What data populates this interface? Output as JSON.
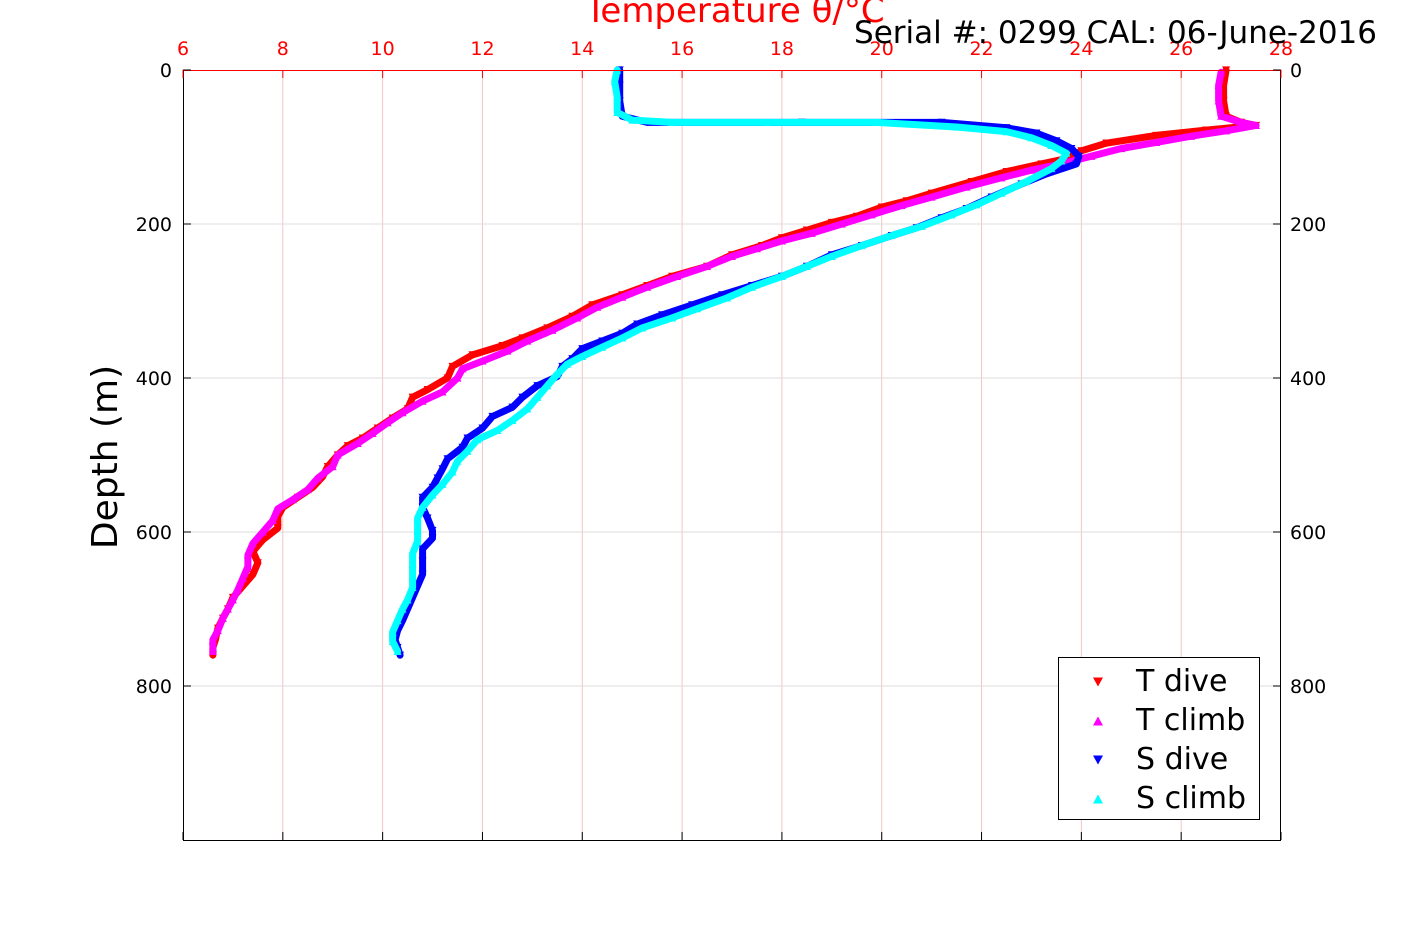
{
  "serial_text": "Serial #: 0299 CAL: 06-June-2016",
  "chart_data": {
    "type": "scatter",
    "title": "Temperature θ/°C",
    "xlabel": "Temperature θ/°C",
    "ylabel": "Depth (m)",
    "xlim": [
      6,
      28
    ],
    "ylim": [
      1000,
      0
    ],
    "x_ticks": [
      6,
      8,
      10,
      12,
      14,
      16,
      18,
      20,
      22,
      24,
      26,
      28
    ],
    "x_tick_labels": [
      "6",
      "8",
      "10",
      "12",
      "14",
      "16",
      "18",
      "20",
      "22",
      "24",
      "26",
      "28"
    ],
    "y_ticks": [
      0,
      200,
      400,
      600,
      800
    ],
    "y_tick_labels": [
      "0",
      "200",
      "400",
      "600",
      "800"
    ],
    "grid": true,
    "legend_position": "bottom-right",
    "colors": {
      "axis_top": "#ff0000",
      "grid_red": "#f2c6c6",
      "grid_gray": "#dcdcdc"
    },
    "series": [
      {
        "name": "T dive",
        "color": "#ff0000",
        "marker": "triangle-down",
        "points": [
          [
            26.9,
            0
          ],
          [
            26.85,
            20
          ],
          [
            26.85,
            40
          ],
          [
            26.9,
            60
          ],
          [
            27.2,
            68
          ],
          [
            27.5,
            72
          ],
          [
            26.5,
            78
          ],
          [
            25.5,
            85
          ],
          [
            24.5,
            95
          ],
          [
            24.0,
            105
          ],
          [
            23.7,
            115
          ],
          [
            23.2,
            122
          ],
          [
            22.5,
            132
          ],
          [
            21.8,
            145
          ],
          [
            21.0,
            160
          ],
          [
            20.5,
            170
          ],
          [
            20.0,
            178
          ],
          [
            19.5,
            190
          ],
          [
            19.0,
            198
          ],
          [
            18.5,
            208
          ],
          [
            18.0,
            218
          ],
          [
            17.6,
            228
          ],
          [
            17.0,
            240
          ],
          [
            16.5,
            255
          ],
          [
            15.8,
            268
          ],
          [
            15.3,
            280
          ],
          [
            14.8,
            292
          ],
          [
            14.2,
            305
          ],
          [
            13.8,
            320
          ],
          [
            13.3,
            335
          ],
          [
            12.8,
            348
          ],
          [
            12.4,
            358
          ],
          [
            11.8,
            370
          ],
          [
            11.4,
            385
          ],
          [
            11.3,
            400
          ],
          [
            10.9,
            415
          ],
          [
            10.6,
            425
          ],
          [
            10.5,
            440
          ],
          [
            10.2,
            452
          ],
          [
            9.9,
            465
          ],
          [
            9.6,
            478
          ],
          [
            9.3,
            488
          ],
          [
            9.1,
            500
          ],
          [
            8.9,
            515
          ],
          [
            8.8,
            528
          ],
          [
            8.6,
            542
          ],
          [
            8.3,
            555
          ],
          [
            8.0,
            568
          ],
          [
            7.9,
            580
          ],
          [
            7.9,
            595
          ],
          [
            7.6,
            610
          ],
          [
            7.4,
            625
          ],
          [
            7.5,
            640
          ],
          [
            7.4,
            655
          ],
          [
            7.2,
            670
          ],
          [
            7.0,
            685
          ],
          [
            6.9,
            700
          ],
          [
            6.8,
            712
          ],
          [
            6.7,
            725
          ],
          [
            6.65,
            740
          ],
          [
            6.6,
            750
          ],
          [
            6.6,
            760
          ]
        ]
      },
      {
        "name": "T climb",
        "color": "#ff00ff",
        "marker": "triangle-up",
        "points": [
          [
            6.6,
            755
          ],
          [
            6.6,
            740
          ],
          [
            6.7,
            728
          ],
          [
            6.8,
            712
          ],
          [
            6.9,
            700
          ],
          [
            7.0,
            688
          ],
          [
            7.1,
            675
          ],
          [
            7.2,
            660
          ],
          [
            7.3,
            645
          ],
          [
            7.3,
            630
          ],
          [
            7.4,
            615
          ],
          [
            7.6,
            600
          ],
          [
            7.8,
            585
          ],
          [
            7.9,
            570
          ],
          [
            8.2,
            558
          ],
          [
            8.5,
            545
          ],
          [
            8.7,
            530
          ],
          [
            9.0,
            515
          ],
          [
            9.1,
            500
          ],
          [
            9.5,
            485
          ],
          [
            9.8,
            472
          ],
          [
            10.1,
            458
          ],
          [
            10.4,
            445
          ],
          [
            10.8,
            430
          ],
          [
            11.2,
            418
          ],
          [
            11.5,
            400
          ],
          [
            11.6,
            388
          ],
          [
            12.0,
            378
          ],
          [
            12.5,
            365
          ],
          [
            12.9,
            352
          ],
          [
            13.4,
            338
          ],
          [
            13.9,
            322
          ],
          [
            14.3,
            308
          ],
          [
            14.8,
            295
          ],
          [
            15.3,
            282
          ],
          [
            15.9,
            268
          ],
          [
            16.5,
            255
          ],
          [
            17.0,
            242
          ],
          [
            17.5,
            232
          ],
          [
            18.0,
            222
          ],
          [
            18.6,
            212
          ],
          [
            19.2,
            200
          ],
          [
            19.8,
            188
          ],
          [
            20.4,
            176
          ],
          [
            21.0,
            165
          ],
          [
            21.7,
            152
          ],
          [
            22.4,
            140
          ],
          [
            23.0,
            130
          ],
          [
            23.6,
            122
          ],
          [
            24.2,
            112
          ],
          [
            24.8,
            102
          ],
          [
            25.5,
            94
          ],
          [
            26.2,
            86
          ],
          [
            26.9,
            79
          ],
          [
            27.5,
            72
          ],
          [
            27.2,
            68
          ],
          [
            26.8,
            60
          ],
          [
            26.75,
            40
          ],
          [
            26.75,
            20
          ],
          [
            26.8,
            3
          ]
        ]
      },
      {
        "name": "S dive",
        "color": "#0000ff",
        "marker": "triangle-down",
        "points": [
          [
            14.75,
            0
          ],
          [
            14.75,
            20
          ],
          [
            14.75,
            40
          ],
          [
            14.8,
            60
          ],
          [
            15.3,
            68
          ],
          [
            18.4,
            68
          ],
          [
            21.2,
            68
          ],
          [
            22.5,
            75
          ],
          [
            23.1,
            82
          ],
          [
            23.5,
            92
          ],
          [
            23.8,
            102
          ],
          [
            23.95,
            112
          ],
          [
            23.9,
            122
          ],
          [
            23.3,
            135
          ],
          [
            22.8,
            148
          ],
          [
            22.2,
            165
          ],
          [
            21.7,
            180
          ],
          [
            21.2,
            192
          ],
          [
            20.7,
            205
          ],
          [
            20.2,
            215
          ],
          [
            19.6,
            228
          ],
          [
            19.0,
            240
          ],
          [
            18.5,
            255
          ],
          [
            18.0,
            268
          ],
          [
            17.4,
            280
          ],
          [
            16.8,
            292
          ],
          [
            16.2,
            305
          ],
          [
            15.6,
            318
          ],
          [
            15.1,
            330
          ],
          [
            14.8,
            342
          ],
          [
            14.4,
            352
          ],
          [
            14.0,
            362
          ],
          [
            13.8,
            375
          ],
          [
            13.6,
            385
          ],
          [
            13.5,
            398
          ],
          [
            13.1,
            410
          ],
          [
            12.8,
            425
          ],
          [
            12.6,
            438
          ],
          [
            12.2,
            450
          ],
          [
            12.0,
            465
          ],
          [
            11.7,
            478
          ],
          [
            11.6,
            490
          ],
          [
            11.3,
            505
          ],
          [
            11.2,
            518
          ],
          [
            11.1,
            530
          ],
          [
            11.0,
            542
          ],
          [
            10.8,
            555
          ],
          [
            10.8,
            568
          ],
          [
            10.9,
            582
          ],
          [
            11.0,
            598
          ],
          [
            11.0,
            608
          ],
          [
            10.8,
            622
          ],
          [
            10.8,
            638
          ],
          [
            10.8,
            655
          ],
          [
            10.7,
            670
          ],
          [
            10.6,
            685
          ],
          [
            10.5,
            700
          ],
          [
            10.4,
            715
          ],
          [
            10.3,
            728
          ],
          [
            10.25,
            740
          ],
          [
            10.3,
            750
          ],
          [
            10.35,
            760
          ]
        ]
      },
      {
        "name": "S climb",
        "color": "#00ffff",
        "marker": "triangle-up",
        "points": [
          [
            10.3,
            755
          ],
          [
            10.2,
            742
          ],
          [
            10.2,
            730
          ],
          [
            10.3,
            715
          ],
          [
            10.4,
            700
          ],
          [
            10.5,
            688
          ],
          [
            10.6,
            672
          ],
          [
            10.6,
            658
          ],
          [
            10.6,
            642
          ],
          [
            10.6,
            628
          ],
          [
            10.7,
            612
          ],
          [
            10.7,
            598
          ],
          [
            10.7,
            582
          ],
          [
            10.8,
            568
          ],
          [
            11.0,
            552
          ],
          [
            11.2,
            538
          ],
          [
            11.4,
            522
          ],
          [
            11.5,
            508
          ],
          [
            11.7,
            495
          ],
          [
            11.9,
            480
          ],
          [
            12.3,
            468
          ],
          [
            12.6,
            455
          ],
          [
            12.9,
            440
          ],
          [
            13.1,
            425
          ],
          [
            13.3,
            410
          ],
          [
            13.5,
            395
          ],
          [
            13.7,
            382
          ],
          [
            14.0,
            372
          ],
          [
            14.4,
            360
          ],
          [
            14.8,
            348
          ],
          [
            15.2,
            335
          ],
          [
            15.8,
            322
          ],
          [
            16.3,
            310
          ],
          [
            16.9,
            296
          ],
          [
            17.4,
            282
          ],
          [
            18.0,
            268
          ],
          [
            18.5,
            255
          ],
          [
            19.0,
            242
          ],
          [
            19.6,
            228
          ],
          [
            20.2,
            215
          ],
          [
            20.8,
            203
          ],
          [
            21.4,
            188
          ],
          [
            21.9,
            175
          ],
          [
            22.4,
            160
          ],
          [
            22.9,
            145
          ],
          [
            23.4,
            128
          ],
          [
            23.6,
            118
          ],
          [
            23.7,
            108
          ],
          [
            23.4,
            98
          ],
          [
            23.0,
            88
          ],
          [
            22.5,
            80
          ],
          [
            21.5,
            74
          ],
          [
            19.9,
            68
          ],
          [
            17.7,
            68
          ],
          [
            15.8,
            68
          ],
          [
            15.0,
            65
          ],
          [
            14.7,
            55
          ],
          [
            14.7,
            35
          ],
          [
            14.65,
            15
          ],
          [
            14.7,
            0
          ]
        ]
      }
    ]
  }
}
